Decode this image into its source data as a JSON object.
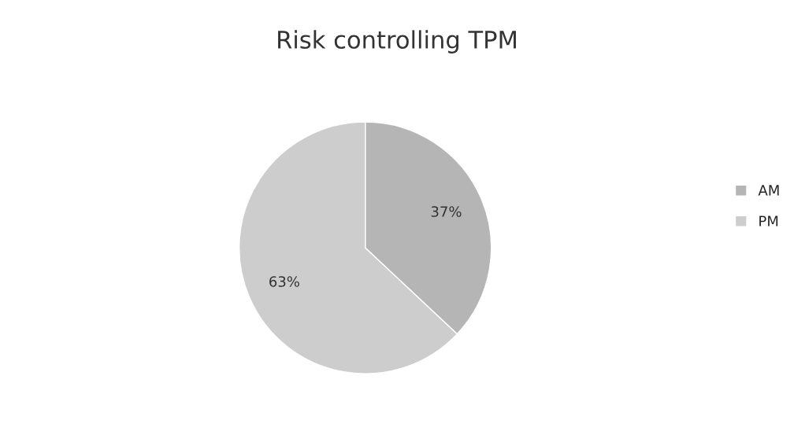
{
  "chart_data": {
    "type": "pie",
    "title": "Risk controlling TPM",
    "categories": [
      "AM",
      "PM"
    ],
    "values": [
      37,
      63
    ],
    "colors": [
      "#b5b5b5",
      "#cdcdcd"
    ],
    "value_labels": [
      "37%",
      "63%"
    ],
    "legend": "right"
  }
}
